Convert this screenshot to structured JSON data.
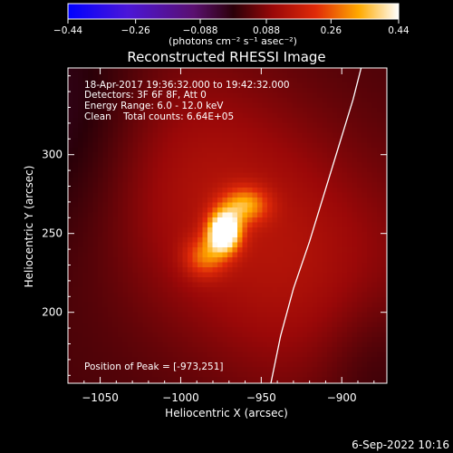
{
  "chart_data": {
    "type": "heatmap",
    "title": "Reconstructed RHESSI Image",
    "xlabel": "Heliocentric X (arcsec)",
    "ylabel": "Heliocentric Y (arcsec)",
    "xlim": [
      -1070,
      -872
    ],
    "ylim": [
      155,
      355
    ],
    "x_ticks": [
      -1050,
      -1000,
      -950,
      -900
    ],
    "y_ticks": [
      200,
      250,
      300
    ],
    "x_tick_labels": [
      "−1050",
      "−1000",
      "−950",
      "−900"
    ],
    "y_tick_labels": [
      "200",
      "250",
      "300"
    ],
    "grid": false,
    "colorbar": {
      "min": -0.44,
      "max": 0.44,
      "ticks": [
        -0.44,
        -0.26,
        -0.088,
        0.088,
        0.26,
        0.44
      ],
      "tick_labels": [
        "−0.44",
        "−0.26",
        "−0.088",
        "0.088",
        "0.26",
        "0.44"
      ],
      "units_label": "(photons cm⁻² s⁻¹ asec⁻²)",
      "colormap": "blue-purple-red-yellow-white"
    },
    "annotations": [
      "18-Apr-2017 19:36:32.000 to 19:42:32.000",
      "Detectors: 3F 6F 8F, Att 0",
      "Energy Range: 6.0 - 12.0 keV",
      "Clean    Total counts: 6.64E+05"
    ],
    "peak_label": "Position of Peak = [-973,251]",
    "peak_position": [
      -973,
      251
    ],
    "limb_curve": [
      [
        -944,
        155
      ],
      [
        -938,
        185
      ],
      [
        -930,
        215
      ],
      [
        -920,
        245
      ],
      [
        -911,
        275
      ],
      [
        -902,
        305
      ],
      [
        -893,
        335
      ],
      [
        -888,
        355
      ]
    ],
    "sources": [
      {
        "x": -973,
        "y": 251,
        "peak": 0.44,
        "sigma_x": 7,
        "sigma_y": 9
      },
      {
        "x": -960,
        "y": 268,
        "peak": 0.2,
        "sigma_x": 10,
        "sigma_y": 8
      },
      {
        "x": -985,
        "y": 235,
        "peak": 0.16,
        "sigma_x": 9,
        "sigma_y": 9
      }
    ],
    "background": "diffuse red emission band from lower-right to upper-left, purple edges"
  },
  "footer": {
    "date_label": "6-Sep-2022 10:16"
  },
  "colors": {
    "background": "#000000",
    "text": "#ffffff",
    "limb": "#ffffff"
  }
}
